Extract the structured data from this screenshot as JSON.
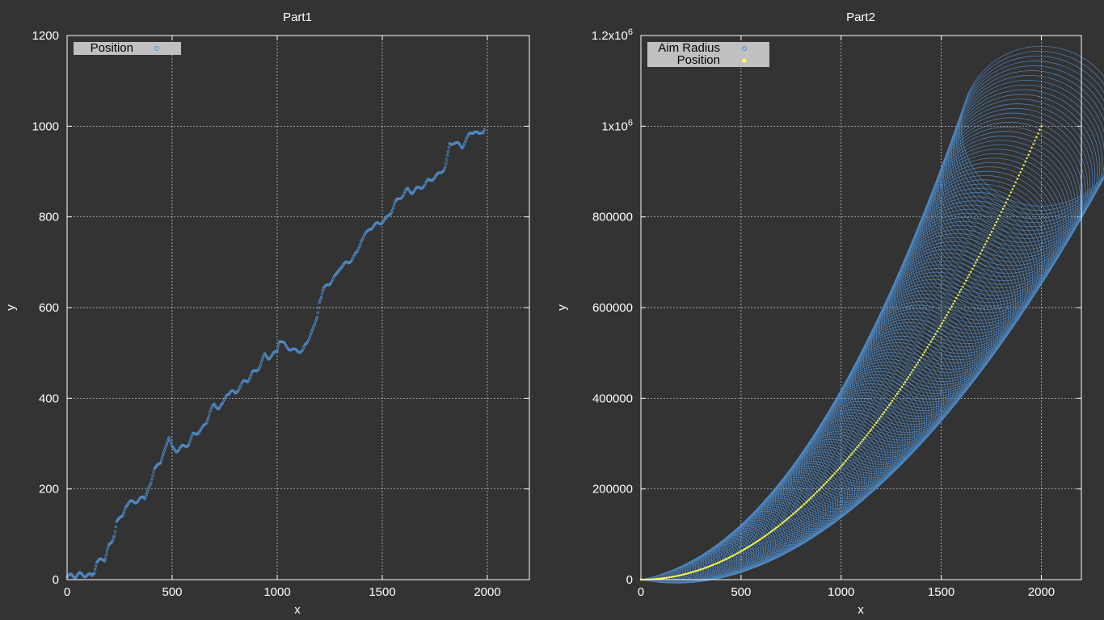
{
  "colors": {
    "background": "#333333",
    "series_blue": "#4f8bc8",
    "series_yellow": "#ffff44",
    "legend_bg": "#c0c0c0"
  },
  "chart_data": [
    {
      "type": "scatter",
      "title": "Part1",
      "xlabel": "x",
      "ylabel": "y",
      "xlim": [
        0,
        2200
      ],
      "ylim": [
        0,
        1200
      ],
      "xticks": [
        0,
        500,
        1000,
        1500,
        2000
      ],
      "xtick_labels": [
        "0",
        "500",
        "1000",
        "1500",
        "2000"
      ],
      "yticks": [
        0,
        200,
        400,
        600,
        800,
        1000,
        1200
      ],
      "ytick_labels": [
        "0",
        "200",
        "400",
        "600",
        "800",
        "1000",
        "1200"
      ],
      "grid": true,
      "legend_position": "top-left",
      "series": [
        {
          "name": "Position",
          "marker": "circle-outline",
          "color": "#4f8bc8",
          "points": [
            [
              0,
              5
            ],
            [
              20,
              10
            ],
            [
              40,
              8
            ],
            [
              60,
              12
            ],
            [
              80,
              10
            ],
            [
              100,
              10
            ],
            [
              120,
              8
            ],
            [
              130,
              10
            ],
            [
              140,
              40
            ],
            [
              160,
              42
            ],
            [
              180,
              45
            ],
            [
              190,
              60
            ],
            [
              200,
              75
            ],
            [
              215,
              80
            ],
            [
              225,
              100
            ],
            [
              235,
              130
            ],
            [
              250,
              140
            ],
            [
              265,
              145
            ],
            [
              280,
              165
            ],
            [
              300,
              170
            ],
            [
              320,
              172
            ],
            [
              340,
              175
            ],
            [
              360,
              180
            ],
            [
              370,
              175
            ],
            [
              385,
              195
            ],
            [
              400,
              210
            ],
            [
              415,
              240
            ],
            [
              430,
              250
            ],
            [
              445,
              255
            ],
            [
              460,
              280
            ],
            [
              475,
              300
            ],
            [
              485,
              310
            ],
            [
              500,
              290
            ],
            [
              520,
              285
            ],
            [
              540,
              290
            ],
            [
              560,
              295
            ],
            [
              580,
              300
            ],
            [
              600,
              320
            ],
            [
              620,
              325
            ],
            [
              640,
              330
            ],
            [
              660,
              345
            ],
            [
              680,
              370
            ],
            [
              700,
              385
            ],
            [
              720,
              380
            ],
            [
              740,
              385
            ],
            [
              760,
              410
            ],
            [
              780,
              415
            ],
            [
              800,
              410
            ],
            [
              820,
              425
            ],
            [
              840,
              435
            ],
            [
              860,
              440
            ],
            [
              880,
              455
            ],
            [
              900,
              460
            ],
            [
              920,
              475
            ],
            [
              940,
              495
            ],
            [
              960,
              490
            ],
            [
              980,
              495
            ],
            [
              1000,
              505
            ],
            [
              1010,
              520
            ],
            [
              1020,
              525
            ],
            [
              1040,
              515
            ],
            [
              1060,
              510
            ],
            [
              1080,
              505
            ],
            [
              1100,
              505
            ],
            [
              1120,
              505
            ],
            [
              1140,
              520
            ],
            [
              1160,
              545
            ],
            [
              1180,
              560
            ],
            [
              1190,
              580
            ],
            [
              1200,
              615
            ],
            [
              1210,
              620
            ],
            [
              1220,
              640
            ],
            [
              1240,
              650
            ],
            [
              1260,
              660
            ],
            [
              1280,
              670
            ],
            [
              1300,
              690
            ],
            [
              1320,
              695
            ],
            [
              1340,
              700
            ],
            [
              1360,
              710
            ],
            [
              1380,
              720
            ],
            [
              1400,
              750
            ],
            [
              1420,
              760
            ],
            [
              1440,
              775
            ],
            [
              1460,
              780
            ],
            [
              1480,
              785
            ],
            [
              1500,
              790
            ],
            [
              1520,
              795
            ],
            [
              1540,
              810
            ],
            [
              1560,
              830
            ],
            [
              1580,
              840
            ],
            [
              1600,
              850
            ],
            [
              1620,
              860
            ],
            [
              1640,
              855
            ],
            [
              1660,
              860
            ],
            [
              1680,
              865
            ],
            [
              1700,
              870
            ],
            [
              1720,
              880
            ],
            [
              1740,
              885
            ],
            [
              1760,
              890
            ],
            [
              1780,
              900
            ],
            [
              1800,
              910
            ],
            [
              1810,
              940
            ],
            [
              1820,
              960
            ],
            [
              1840,
              965
            ],
            [
              1860,
              960
            ],
            [
              1880,
              955
            ],
            [
              1900,
              970
            ],
            [
              1920,
              985
            ],
            [
              1940,
              990
            ],
            [
              1960,
              980
            ],
            [
              1980,
              990
            ],
            [
              1990,
              995
            ]
          ]
        }
      ]
    },
    {
      "type": "scatter",
      "title": "Part2",
      "xlabel": "x",
      "ylabel": "y",
      "xlim": [
        0,
        2200
      ],
      "ylim": [
        0,
        1200000
      ],
      "xticks": [
        0,
        500,
        1000,
        1500,
        2000
      ],
      "xtick_labels": [
        "0",
        "500",
        "1000",
        "1500",
        "2000"
      ],
      "yticks": [
        0,
        200000,
        400000,
        600000,
        800000,
        1000000,
        1200000
      ],
      "ytick_labels": [
        "0",
        "200000",
        "400000",
        "600000",
        "800000",
        "1x10^6",
        "1.2x10^6"
      ],
      "grid": true,
      "legend_position": "top-left",
      "series": [
        {
          "name": "Aim Radius",
          "marker": "circle-outline-variable",
          "color": "#4f8bc8",
          "model": "y = x^2/4, radius = x/10 (data units)",
          "x_range": [
            0,
            2000
          ]
        },
        {
          "name": "Position",
          "marker": "circle-filled",
          "color": "#ffff44",
          "model": "y = x^2/4",
          "x_range": [
            0,
            2000
          ]
        }
      ]
    }
  ]
}
